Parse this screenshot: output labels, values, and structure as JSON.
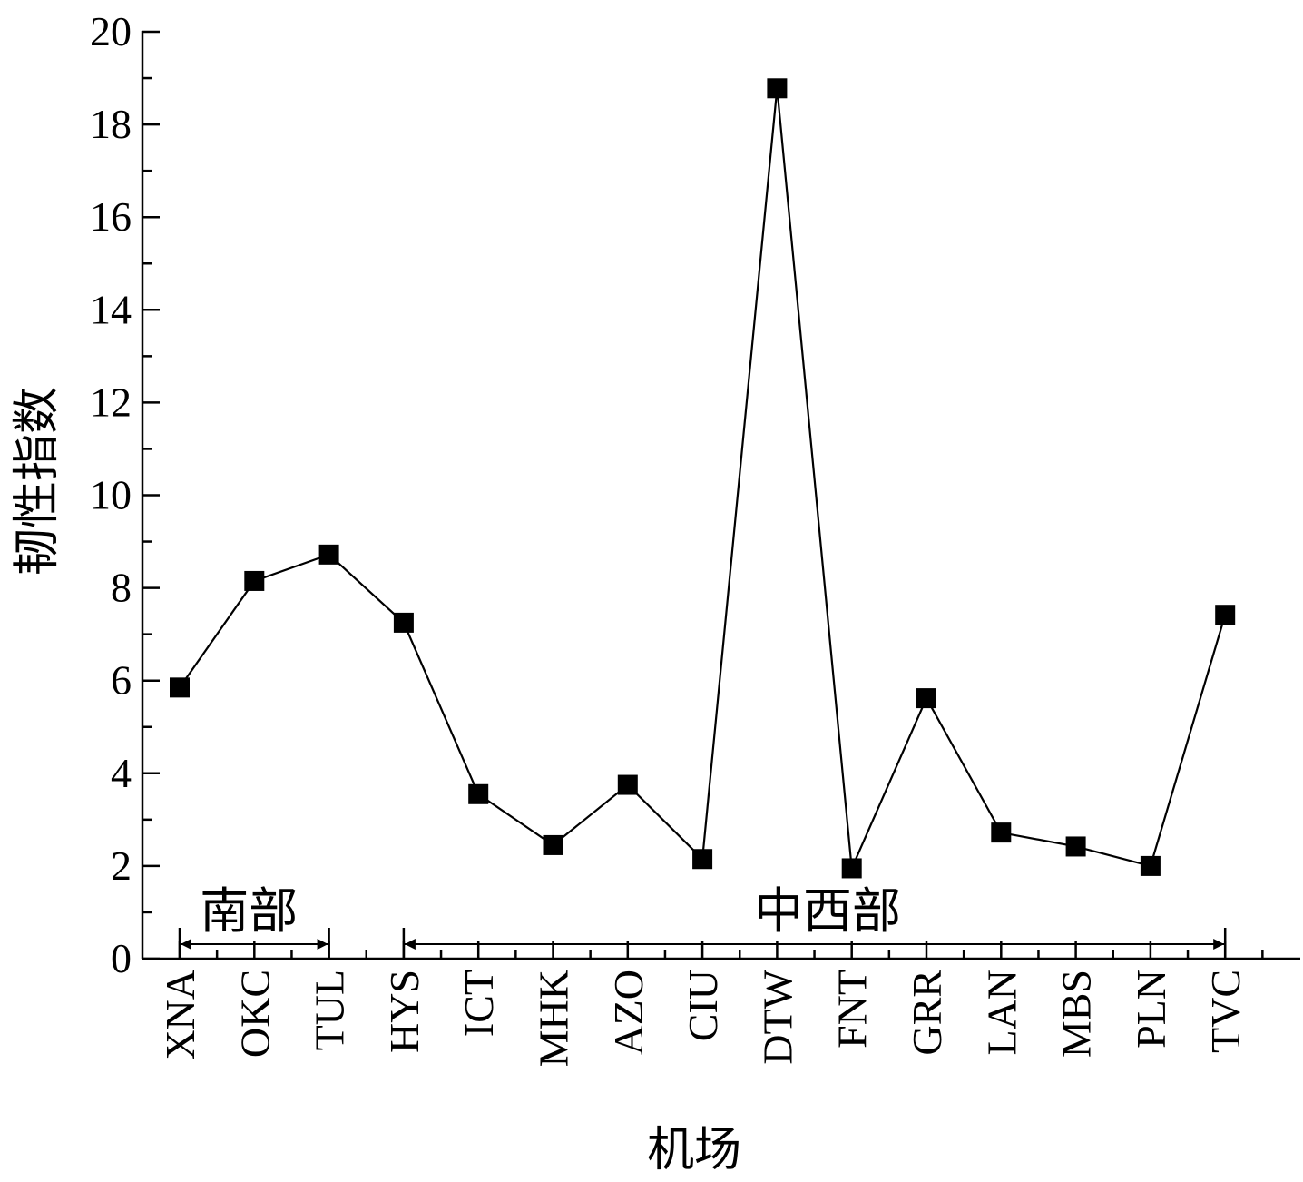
{
  "chart_data": {
    "type": "line",
    "title": "",
    "xlabel": "机场",
    "ylabel": "韧性指数",
    "ylim": [
      0,
      20
    ],
    "yticks": [
      0,
      2,
      4,
      6,
      8,
      10,
      12,
      14,
      16,
      18,
      20
    ],
    "categories": [
      "XNA",
      "OKC",
      "TUL",
      "HYS",
      "ICT",
      "MHK",
      "AZO",
      "CIU",
      "DTW",
      "FNT",
      "GRR",
      "LAN",
      "MBS",
      "PLN",
      "TVC"
    ],
    "series": [
      {
        "values": [
          5.85,
          8.15,
          8.72,
          7.25,
          3.55,
          2.45,
          3.75,
          2.15,
          18.78,
          1.95,
          5.62,
          2.72,
          2.42,
          2.0,
          7.42
        ]
      }
    ],
    "marker": "square",
    "line_color": "#000000",
    "grid": false,
    "region_annotations": [
      {
        "label": "南部",
        "from": "XNA",
        "to": "TUL"
      },
      {
        "label": "中西部",
        "from": "HYS",
        "to": "TVC"
      }
    ]
  }
}
